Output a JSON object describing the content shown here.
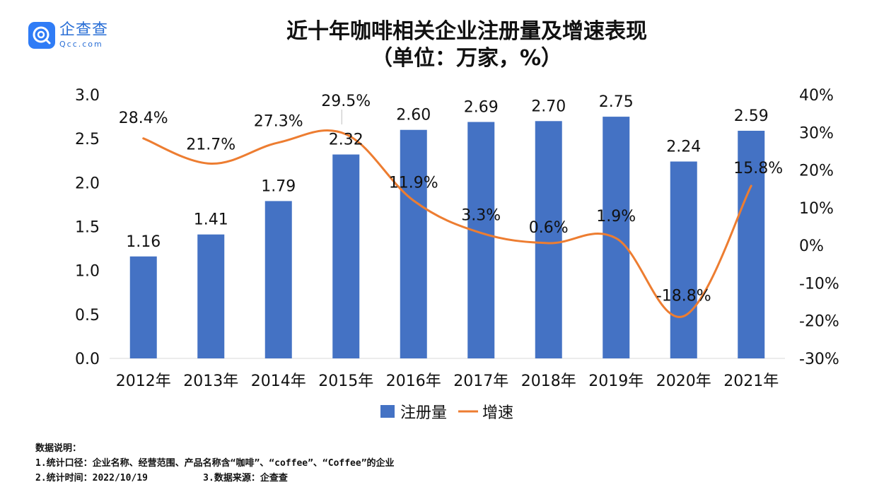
{
  "logo": {
    "cn": "企查查",
    "en": "Qcc.com"
  },
  "chart_data": {
    "type": "bar+line",
    "title_line1": "近十年咖啡相关企业注册量及增速表现",
    "title_line2": "（单位：万家，%）",
    "categories": [
      "2012年",
      "2013年",
      "2014年",
      "2015年",
      "2016年",
      "2017年",
      "2018年",
      "2019年",
      "2020年",
      "2021年"
    ],
    "series": [
      {
        "name": "注册量",
        "type": "bar",
        "axis": "left",
        "color": "#4472c4",
        "values": [
          1.16,
          1.41,
          1.79,
          2.32,
          2.6,
          2.69,
          2.7,
          2.75,
          2.24,
          2.59
        ],
        "labels": [
          "1.16",
          "1.41",
          "1.79",
          "2.32",
          "2.60",
          "2.69",
          "2.70",
          "2.75",
          "2.24",
          "2.59"
        ]
      },
      {
        "name": "增速",
        "type": "line",
        "axis": "right",
        "color": "#ed7d31",
        "values": [
          28.4,
          21.7,
          27.3,
          29.5,
          11.9,
          3.3,
          0.6,
          1.9,
          -18.8,
          15.8
        ],
        "labels": [
          "28.4%",
          "21.7%",
          "27.3%",
          "29.5%",
          "11.9%",
          "3.3%",
          "0.6%",
          "1.9%",
          "-18.8%",
          "15.8%"
        ]
      }
    ],
    "left_axis": {
      "ylim": [
        0,
        3.0
      ],
      "ticks": [
        "0.0",
        "0.5",
        "1.0",
        "1.5",
        "2.0",
        "2.5",
        "3.0"
      ]
    },
    "right_axis": {
      "ylim": [
        -30,
        40
      ],
      "ticks": [
        "-30%",
        "-20%",
        "-10%",
        "0%",
        "10%",
        "20%",
        "30%",
        "40%"
      ]
    },
    "legend": [
      "注册量",
      "增速"
    ],
    "legend_position": "bottom-center"
  },
  "notes": {
    "heading": "数据说明：",
    "line1": "1.统计口径：企业名称、经营范围、产品名称含“咖啡”、“coffee”、“Coffee”的企业",
    "line2": "2.统计时间：2022/10/19          3.数据来源：企查查"
  }
}
